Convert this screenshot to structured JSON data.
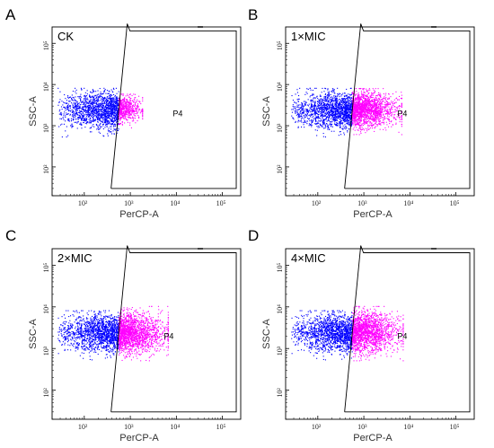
{
  "chart_data": [
    {
      "type": "scatter",
      "panel_label": "A",
      "title": "CK",
      "xlabel": "PerCP-A",
      "ylabel": "SSC-A",
      "xscale": "log",
      "yscale": "log",
      "xlim": [
        20,
        250000
      ],
      "ylim": [
        20,
        250000
      ],
      "x_ticks": [
        "10²",
        "10³",
        "10⁴",
        "10⁵"
      ],
      "y_ticks": [
        "10²",
        "10³",
        "10⁴",
        "10⁵"
      ],
      "gate": {
        "name": "P4",
        "x_min": 500,
        "x_max": 200000,
        "y_min": 30,
        "y_max": 200000
      },
      "populations": [
        {
          "color": "#0000ff",
          "x_range": [
            25,
            550
          ],
          "y_center": 2400,
          "y_spread": [
            900,
            6500
          ]
        },
        {
          "color": "#ff00ff",
          "x_range": [
            550,
            1800
          ],
          "y_center": 2600,
          "y_spread": [
            1200,
            5000
          ]
        }
      ],
      "gate_percent_approx": 15
    },
    {
      "type": "scatter",
      "panel_label": "B",
      "title": "1×MIC",
      "xlabel": "PerCP-A",
      "ylabel": "SSC-A",
      "xscale": "log",
      "yscale": "log",
      "xlim": [
        20,
        250000
      ],
      "ylim": [
        20,
        250000
      ],
      "x_ticks": [
        "10²",
        "10³",
        "10⁴",
        "10⁵"
      ],
      "y_ticks": [
        "10²",
        "10³",
        "10⁴",
        "10⁵"
      ],
      "gate": {
        "name": "P4",
        "x_min": 500,
        "x_max": 200000,
        "y_min": 30,
        "y_max": 200000
      },
      "populations": [
        {
          "color": "#0000ff",
          "x_range": [
            25,
            550
          ],
          "y_center": 2400,
          "y_spread": [
            900,
            6500
          ]
        },
        {
          "color": "#ff00ff",
          "x_range": [
            550,
            6500
          ],
          "y_center": 2500,
          "y_spread": [
            1000,
            6500
          ]
        }
      ],
      "gate_percent_approx": 55
    },
    {
      "type": "scatter",
      "panel_label": "C",
      "title": "2×MIC",
      "xlabel": "PerCP-A",
      "ylabel": "SSC-A",
      "xscale": "log",
      "yscale": "log",
      "xlim": [
        20,
        250000
      ],
      "ylim": [
        20,
        250000
      ],
      "x_ticks": [
        "10²",
        "10³",
        "10⁴",
        "10⁵"
      ],
      "y_ticks": [
        "10²",
        "10³",
        "10⁴",
        "10⁵"
      ],
      "gate": {
        "name": "P4",
        "x_min": 500,
        "x_max": 200000,
        "y_min": 30,
        "y_max": 200000
      },
      "populations": [
        {
          "color": "#0000ff",
          "x_range": [
            25,
            550
          ],
          "y_center": 2400,
          "y_spread": [
            900,
            6500
          ]
        },
        {
          "color": "#ff00ff",
          "x_range": [
            550,
            6500
          ],
          "y_center": 2400,
          "y_spread": [
            900,
            8000
          ]
        }
      ],
      "gate_percent_approx": 60
    },
    {
      "type": "scatter",
      "panel_label": "D",
      "title": "4×MIC",
      "xlabel": "PerCP-A",
      "ylabel": "SSC-A",
      "xscale": "log",
      "yscale": "log",
      "xlim": [
        20,
        250000
      ],
      "ylim": [
        20,
        250000
      ],
      "x_ticks": [
        "10²",
        "10³",
        "10⁴",
        "10⁵"
      ],
      "y_ticks": [
        "10²",
        "10³",
        "10⁴",
        "10⁵"
      ],
      "gate": {
        "name": "P4",
        "x_min": 500,
        "x_max": 200000,
        "y_min": 30,
        "y_max": 200000
      },
      "populations": [
        {
          "color": "#0000ff",
          "x_range": [
            25,
            550
          ],
          "y_center": 2400,
          "y_spread": [
            900,
            6500
          ]
        },
        {
          "color": "#ff00ff",
          "x_range": [
            550,
            7000
          ],
          "y_center": 2500,
          "y_spread": [
            900,
            8000
          ]
        }
      ],
      "gate_percent_approx": 62
    }
  ]
}
